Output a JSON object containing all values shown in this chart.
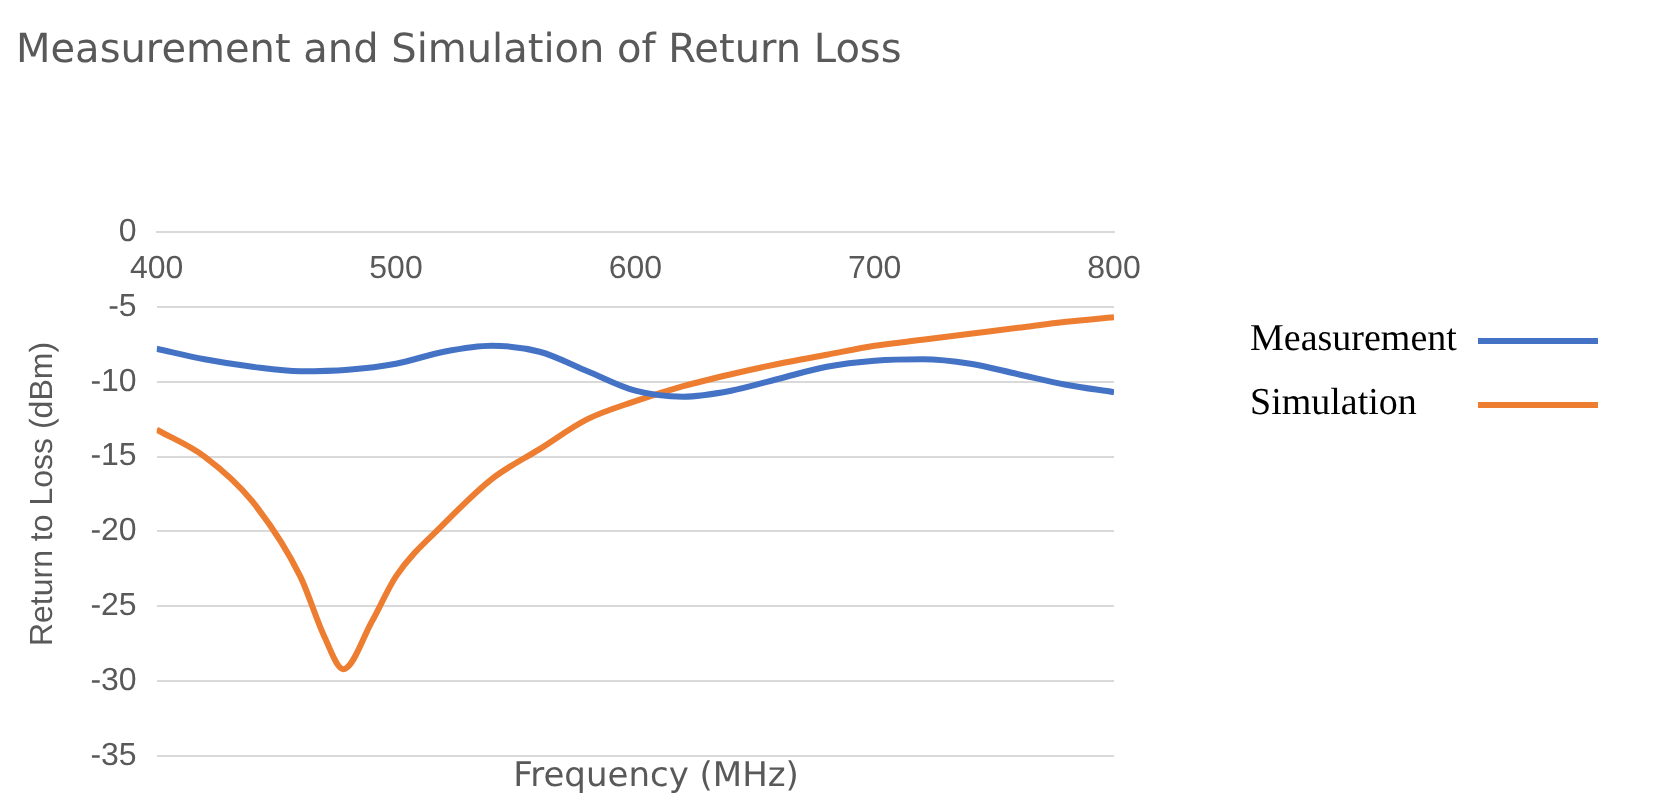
{
  "chart_data": {
    "type": "line",
    "title": "Measurement and Simulation of Return Loss",
    "xlabel": "Frequency (MHz)",
    "ylabel": "Return to Loss (dBm)",
    "xlim": [
      400,
      800
    ],
    "xticks": [
      400,
      500,
      600,
      700,
      800
    ],
    "ylim": [
      -35,
      0
    ],
    "yticks": [
      -35,
      -30,
      -25,
      -20,
      -15,
      -10,
      -5,
      0
    ],
    "grid": "y",
    "legend": "right",
    "marker": "none",
    "line_style": "solid",
    "series": [
      {
        "name": "Measurement",
        "color": "#4472c4",
        "x": [
          400,
          420,
          440,
          460,
          480,
          500,
          520,
          540,
          560,
          580,
          600,
          620,
          640,
          660,
          680,
          700,
          720,
          740,
          760,
          780,
          800
        ],
        "values": [
          -7.8,
          -8.5,
          -9.0,
          -9.3,
          -9.2,
          -8.8,
          -8.0,
          -7.6,
          -8.0,
          -9.3,
          -10.6,
          -11.0,
          -10.6,
          -9.8,
          -9.0,
          -8.6,
          -8.5,
          -8.8,
          -9.5,
          -10.2,
          -10.7
        ]
      },
      {
        "name": "Simulation",
        "color": "#ed7d31",
        "x": [
          400,
          420,
          440,
          460,
          470,
          478,
          490,
          500,
          520,
          540,
          560,
          580,
          600,
          620,
          640,
          660,
          680,
          700,
          720,
          740,
          760,
          780,
          800
        ],
        "values": [
          -13.2,
          -15.0,
          -18.0,
          -23.0,
          -27.0,
          -29.2,
          -26.0,
          -23.0,
          -19.5,
          -16.5,
          -14.5,
          -12.5,
          -11.3,
          -10.3,
          -9.5,
          -8.8,
          -8.2,
          -7.6,
          -7.2,
          -6.8,
          -6.4,
          -6.0,
          -5.7
        ]
      }
    ]
  }
}
